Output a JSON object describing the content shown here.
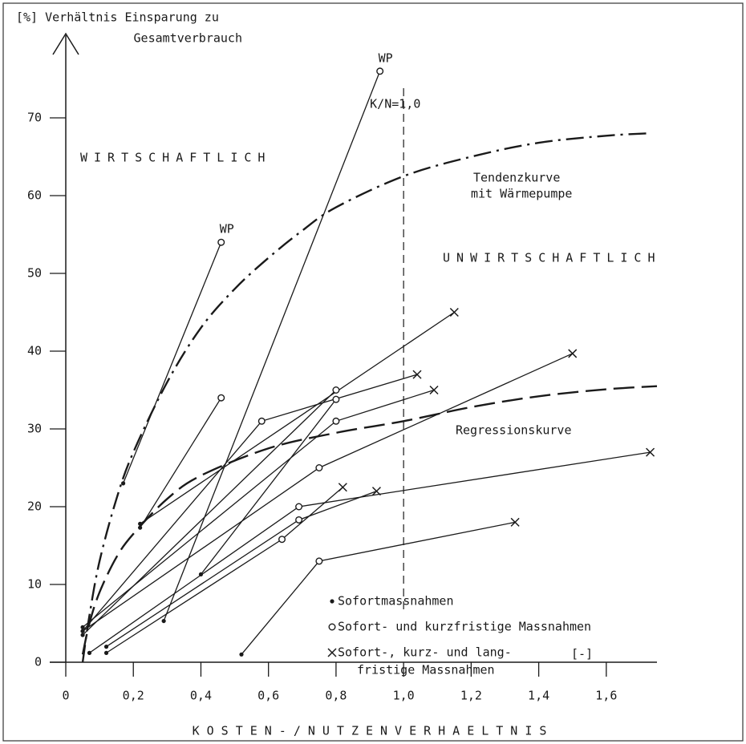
{
  "chart_data": {
    "type": "line",
    "ylabel": [
      "[%] Verhältnis Einsparung zu",
      "Gesamtverbrauch"
    ],
    "xlabel": "KOSTEN-/NUTZENVERHAELTNIS",
    "region_left": "WIRTSCHAFTLICH",
    "region_right": "UNWIRTSCHAFTLICH",
    "threshold": {
      "x": 1.0,
      "label": "K/N=1,0"
    },
    "unit_note": "[-]",
    "xlim": [
      0,
      1.75
    ],
    "ylim": [
      0,
      80
    ],
    "xticks": [
      0,
      {
        "value": 0.2,
        "label": "0,2"
      },
      {
        "value": 0.4,
        "label": "0,4"
      },
      {
        "value": 0.6,
        "label": "0,6"
      },
      {
        "value": 0.8,
        "label": "0,8"
      },
      {
        "value": 1.0,
        "label": "1,0"
      },
      {
        "value": 1.2,
        "label": "1,2"
      },
      {
        "value": 1.4,
        "label": "1,4"
      },
      {
        "value": 1.6,
        "label": "1,6"
      }
    ],
    "yticks": [
      0,
      10,
      20,
      30,
      40,
      50,
      60,
      70
    ],
    "color": "#1a1a1a",
    "curves": [
      {
        "name": [
          "Tendenzkurve",
          "mit Wärmepumpe"
        ],
        "dash": "dashdot",
        "x": [
          0.05,
          0.07,
          0.1,
          0.15,
          0.2,
          0.3,
          0.4,
          0.5,
          0.6,
          0.7,
          0.8,
          1.0,
          1.2,
          1.4,
          1.6,
          1.72
        ],
        "values": [
          0,
          6,
          13,
          21,
          27,
          36,
          43,
          48,
          52,
          55.5,
          58.5,
          62.5,
          65,
          66.8,
          67.7,
          68
        ]
      },
      {
        "name": [
          "Regressionskurve"
        ],
        "dash": "longdash",
        "x": [
          0.05,
          0.07,
          0.1,
          0.15,
          0.2,
          0.3,
          0.4,
          0.6,
          0.8,
          1.0,
          1.2,
          1.4,
          1.6,
          1.75
        ],
        "values": [
          1,
          5,
          9,
          13.5,
          16.5,
          21,
          24,
          27.5,
          29.5,
          31,
          32.8,
          34.2,
          35.1,
          35.5
        ]
      }
    ],
    "segments": [
      {
        "x": [
          0.17,
          0.46
        ],
        "values": [
          23,
          54
        ],
        "markers": [
          "dot",
          "circle"
        ],
        "label": "WP"
      },
      {
        "x": [
          0.29,
          0.93
        ],
        "values": [
          5.3,
          76
        ],
        "markers": [
          "dot",
          "circle"
        ],
        "label": "WP"
      },
      {
        "x": [
          0.22,
          0.46
        ],
        "values": [
          17.3,
          34
        ],
        "markers": [
          "dot",
          "circle"
        ]
      },
      {
        "x": [
          0.22,
          1.15
        ],
        "values": [
          17.8,
          45
        ],
        "markers": [
          "dot",
          "cross"
        ]
      },
      {
        "x": [
          0.05,
          0.58,
          1.04
        ],
        "values": [
          4,
          31,
          37
        ],
        "markers": [
          "dot",
          "circle",
          "cross"
        ]
      },
      {
        "x": [
          0.05,
          0.8
        ],
        "values": [
          3.5,
          35
        ],
        "markers": [
          "dot",
          "circle"
        ]
      },
      {
        "x": [
          0.4,
          0.8
        ],
        "values": [
          11.3,
          33.8
        ],
        "markers": [
          "dot",
          "circle"
        ]
      },
      {
        "x": [
          0.05,
          0.8,
          1.09
        ],
        "values": [
          4.5,
          31,
          35
        ],
        "markers": [
          "dot",
          "circle",
          "cross"
        ]
      },
      {
        "x": [
          0.05,
          0.75,
          1.5
        ],
        "values": [
          4,
          25,
          39.7
        ],
        "markers": [
          "dot",
          "circle",
          "cross"
        ]
      },
      {
        "x": [
          0.07,
          0.69,
          1.73
        ],
        "values": [
          1.2,
          20,
          27
        ],
        "markers": [
          "dot",
          "circle",
          "cross"
        ]
      },
      {
        "x": [
          0.12,
          0.69,
          0.92
        ],
        "values": [
          2,
          18.3,
          22
        ],
        "markers": [
          "dot",
          "circle",
          "cross"
        ]
      },
      {
        "x": [
          0.12,
          0.64,
          0.82
        ],
        "values": [
          1.2,
          15.8,
          22.5
        ],
        "markers": [
          "dot",
          "circle",
          "cross"
        ]
      },
      {
        "x": [
          0.52,
          0.75,
          1.33
        ],
        "values": [
          1,
          13,
          18
        ],
        "markers": [
          "dot",
          "circle",
          "cross"
        ]
      }
    ],
    "legend": [
      {
        "label": [
          "Sofortmassnahmen"
        ],
        "marker": "dot"
      },
      {
        "label": [
          "Sofort- und kurzfristige Massnahmen"
        ],
        "marker": "circle"
      },
      {
        "label": [
          "Sofort-, kurz- und lang-",
          "fristige Massnahmen"
        ],
        "marker": "cross"
      }
    ]
  }
}
